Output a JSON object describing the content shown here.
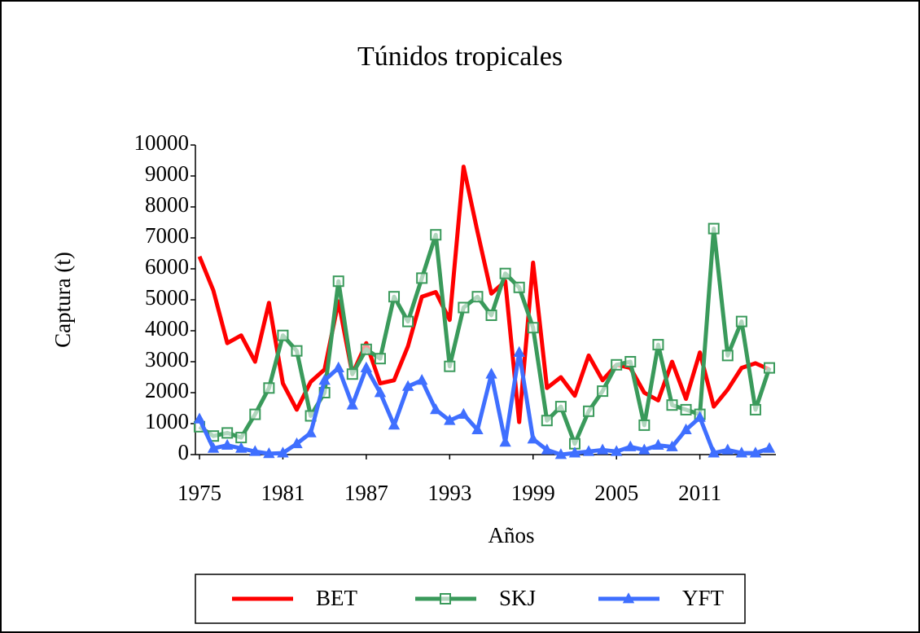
{
  "chart_data": {
    "type": "line",
    "title": "Túnidos tropicales",
    "x_label": "Años",
    "y_label": "Captura (t)",
    "x": [
      1975,
      1976,
      1977,
      1978,
      1979,
      1980,
      1981,
      1982,
      1983,
      1984,
      1985,
      1986,
      1987,
      1988,
      1989,
      1990,
      1991,
      1992,
      1993,
      1994,
      1995,
      1996,
      1997,
      1998,
      1999,
      2000,
      2001,
      2002,
      2003,
      2004,
      2005,
      2006,
      2007,
      2008,
      2009,
      2010,
      2011,
      2012,
      2013,
      2014,
      2015,
      2016
    ],
    "xlim": [
      1975,
      2016
    ],
    "xticks": [
      1975,
      1981,
      1987,
      1993,
      1999,
      2005,
      2011
    ],
    "ylim": [
      0,
      10000
    ],
    "yticks": [
      0,
      1000,
      2000,
      3000,
      4000,
      5000,
      6000,
      7000,
      8000,
      9000,
      10000
    ],
    "legend": "bottom",
    "series": [
      {
        "name": "BET",
        "color": "#ff0000",
        "marker": "none",
        "values": [
          6400,
          5300,
          3600,
          3850,
          3000,
          4900,
          2300,
          1450,
          2350,
          2750,
          4950,
          2600,
          3600,
          2300,
          2400,
          3500,
          5100,
          5250,
          4350,
          9300,
          7200,
          5200,
          5600,
          1050,
          6200,
          2150,
          2500,
          1900,
          3200,
          2400,
          2900,
          2800,
          2000,
          1750,
          3000,
          1800,
          3300,
          1550,
          2100,
          2800,
          2950,
          2750
        ]
      },
      {
        "name": "SKJ",
        "color": "#3a9a5b",
        "marker": "square",
        "values": [
          900,
          600,
          700,
          550,
          1300,
          2150,
          3850,
          3350,
          1250,
          2000,
          5600,
          2600,
          3400,
          3100,
          5100,
          4300,
          5700,
          7100,
          2850,
          4750,
          5100,
          4500,
          5850,
          5400,
          4100,
          1100,
          1550,
          350,
          1400,
          2050,
          2900,
          3000,
          950,
          3550,
          1600,
          1450,
          1300,
          7300,
          3200,
          4300,
          1450,
          2800
        ]
      },
      {
        "name": "YFT",
        "color": "#3f6fff",
        "marker": "triangle",
        "values": [
          1150,
          200,
          300,
          200,
          100,
          30,
          50,
          350,
          700,
          2400,
          2800,
          1600,
          2800,
          2000,
          950,
          2200,
          2400,
          1450,
          1100,
          1300,
          800,
          2600,
          400,
          3300,
          500,
          150,
          0,
          50,
          100,
          150,
          100,
          250,
          150,
          300,
          250,
          800,
          1200,
          50,
          150,
          50,
          50,
          200
        ]
      }
    ]
  }
}
